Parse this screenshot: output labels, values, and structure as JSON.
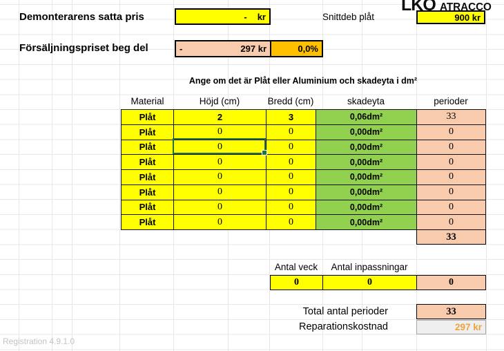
{
  "logo": {
    "lkq": "LKQ",
    "atracco": "ATRACCO"
  },
  "top": {
    "demonterarens_label": "Demonterarens satta pris",
    "demonterarens_value": "-",
    "demonterarens_unit": "kr",
    "snittdeb_label": "Snittdeb plåt",
    "snittdeb_value": "900 kr",
    "forsaljning_label": "Försäljningspriset beg del",
    "forsaljning_dash": "-",
    "forsaljning_value": "297 kr",
    "forsaljning_percent": "0,0%"
  },
  "table": {
    "instruction": "Ange om det är Plåt eller Aluminium och skadeyta i dm²",
    "columns": [
      "Material",
      "Höjd (cm)",
      "Bredd (cm)",
      "skadeyta",
      "perioder"
    ],
    "rows": [
      {
        "material": "Plåt",
        "hojd": "2",
        "bredd": "3",
        "skadeyta": "0,06dm²",
        "perioder": "33"
      },
      {
        "material": "Plåt",
        "hojd": "0",
        "bredd": "0",
        "skadeyta": "0,00dm²",
        "perioder": "0"
      },
      {
        "material": "Plåt",
        "hojd": "0",
        "bredd": "0",
        "skadeyta": "0,00dm²",
        "perioder": "0"
      },
      {
        "material": "Plåt",
        "hojd": "0",
        "bredd": "0",
        "skadeyta": "0,00dm²",
        "perioder": "0"
      },
      {
        "material": "Plåt",
        "hojd": "0",
        "bredd": "0",
        "skadeyta": "0,00dm²",
        "perioder": "0"
      },
      {
        "material": "Plåt",
        "hojd": "0",
        "bredd": "0",
        "skadeyta": "0,00dm²",
        "perioder": "0"
      },
      {
        "material": "Plåt",
        "hojd": "0",
        "bredd": "0",
        "skadeyta": "0,00dm²",
        "perioder": "0"
      },
      {
        "material": "Plåt",
        "hojd": "0",
        "bredd": "0",
        "skadeyta": "0,00dm²",
        "perioder": "0"
      }
    ],
    "perioder_subtotal": "33"
  },
  "antal": {
    "veck_label": "Antal veck",
    "inpassningar_label": "Antal inpassningar",
    "veck_value": "0",
    "inpassningar_value": "0",
    "perioder_value": "0"
  },
  "totals": {
    "total_perioder_label": "Total antal perioder",
    "total_perioder_value": "33",
    "reparationskostnad_label": "Reparationskostnad",
    "reparationskostnad_value": "297 kr"
  },
  "footer": {
    "version": "Registration 4.9.1.0"
  },
  "colors": {
    "input_yellow": "#FFFF00",
    "result_peach": "#F8CBAD",
    "percent_gold": "#FFC000",
    "skadeyta_green": "#92D050",
    "cost_orange": "#EDA33D",
    "selection_green": "#1F7245"
  }
}
